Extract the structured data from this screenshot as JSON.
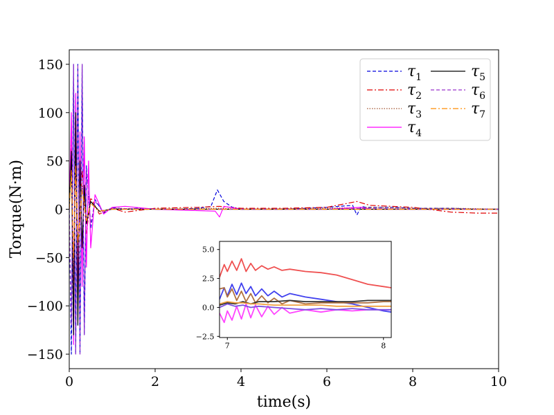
{
  "chart_data": [
    {
      "type": "line",
      "title": "",
      "xlabel": "time(s)",
      "ylabel": "Torque(N·m)",
      "xlim": [
        0,
        10
      ],
      "ylim": [
        -165,
        165
      ],
      "xticks": [
        0,
        2,
        4,
        6,
        8,
        10
      ],
      "xtick_labels": [
        "0",
        "2",
        "4",
        "6",
        "8",
        "10"
      ],
      "yticks": [
        -150,
        -100,
        -50,
        0,
        50,
        100,
        150
      ],
      "ytick_labels": [
        "−150",
        "−100",
        "−50",
        "0",
        "50",
        "100",
        "150"
      ],
      "grid": false,
      "legend_position": "top-right",
      "series": [
        {
          "name": "τ1",
          "color": "#0000dd",
          "style": "dashed",
          "x": [
            0,
            0.05,
            0.1,
            0.15,
            0.2,
            0.25,
            0.3,
            0.35,
            0.4,
            0.5,
            0.6,
            0.8,
            1.0,
            1.3,
            1.6,
            2.0,
            2.5,
            3.0,
            3.3,
            3.45,
            3.5,
            3.6,
            3.8,
            4.0,
            5.0,
            6.0,
            6.6,
            6.7,
            6.8,
            6.9,
            7.5,
            8.0,
            8.9,
            9.5,
            10
          ],
          "values": [
            0,
            -150,
            150,
            -150,
            150,
            -150,
            150,
            -130,
            45,
            -20,
            10,
            -4,
            2,
            0,
            1,
            0,
            0,
            1,
            3,
            20,
            16,
            8,
            2,
            0,
            0,
            2,
            4,
            -6,
            3,
            2,
            2,
            1,
            1,
            0,
            0
          ]
        },
        {
          "name": "τ2",
          "color": "#e00000",
          "style": "dashdot",
          "x": [
            0,
            0.05,
            0.1,
            0.15,
            0.2,
            0.3,
            0.4,
            0.5,
            0.7,
            1.0,
            1.3,
            2.0,
            3.0,
            3.5,
            4.0,
            5.0,
            6.0,
            6.7,
            7.0,
            7.5,
            8.0,
            8.9,
            9.5,
            10
          ],
          "values": [
            0,
            80,
            -100,
            110,
            -60,
            40,
            -25,
            12,
            -5,
            1,
            -3,
            1,
            2,
            3,
            1,
            1,
            2,
            8,
            4,
            3,
            2,
            -3,
            -4,
            -4
          ]
        },
        {
          "name": "τ3",
          "color": "#a0522d",
          "style": "dotted",
          "x": [
            0,
            0.05,
            0.1,
            0.15,
            0.2,
            0.3,
            0.4,
            0.5,
            0.7,
            1.0,
            2.0,
            3.5,
            4.0,
            6.0,
            7.0,
            8.0,
            9.0,
            10
          ],
          "values": [
            0,
            60,
            -70,
            50,
            -40,
            25,
            -15,
            8,
            -3,
            1,
            0,
            1,
            0,
            1,
            2,
            1,
            1,
            0
          ]
        },
        {
          "name": "τ4",
          "color": "#ff00ff",
          "style": "solid",
          "x": [
            0,
            0.05,
            0.1,
            0.15,
            0.2,
            0.25,
            0.3,
            0.35,
            0.4,
            0.45,
            0.5,
            0.6,
            0.8,
            1.0,
            1.3,
            2.0,
            3.4,
            3.5,
            3.6,
            4.0,
            6.0,
            6.8,
            7.0,
            8.0,
            9.0,
            10
          ],
          "values": [
            0,
            100,
            -140,
            120,
            -100,
            80,
            -80,
            75,
            -60,
            50,
            -40,
            15,
            -5,
            2,
            3,
            0,
            -2,
            -8,
            3,
            0,
            0,
            2,
            0,
            0,
            0,
            0
          ]
        },
        {
          "name": "τ5",
          "color": "#000000",
          "style": "solid",
          "x": [
            0,
            0.05,
            0.1,
            0.15,
            0.2,
            0.25,
            0.3,
            0.35,
            0.4,
            0.5,
            0.7,
            1.0,
            2.0,
            4.0,
            6.0,
            8.0,
            9.5,
            10
          ],
          "values": [
            0,
            60,
            -130,
            100,
            -120,
            50,
            -40,
            25,
            -15,
            8,
            -2,
            0,
            0,
            0,
            0,
            0,
            0,
            0
          ]
        },
        {
          "name": "τ6",
          "color": "#9932cc",
          "style": "dashed",
          "x": [
            0,
            0.05,
            0.1,
            0.15,
            0.2,
            0.25,
            0.3,
            0.35,
            0.4,
            0.5,
            0.6,
            0.8,
            1.0,
            2.0,
            4.0,
            6.0,
            7.0,
            8.0,
            9.0,
            10
          ],
          "values": [
            0,
            -120,
            150,
            -150,
            150,
            -150,
            150,
            -130,
            40,
            -15,
            8,
            -2,
            1,
            0,
            0,
            0,
            1,
            0,
            0,
            0
          ]
        },
        {
          "name": "τ7",
          "color": "#ff8c00",
          "style": "dashdot",
          "x": [
            0,
            0.05,
            0.1,
            0.15,
            0.2,
            0.3,
            0.4,
            0.5,
            0.7,
            1.0,
            2.0,
            4.0,
            6.0,
            8.0,
            10
          ],
          "values": [
            0,
            40,
            -50,
            45,
            -35,
            20,
            -12,
            6,
            -2,
            0,
            0,
            0,
            0,
            0,
            0
          ]
        }
      ]
    },
    {
      "type": "line",
      "title": "",
      "xlabel": "",
      "ylabel": "",
      "xlim": [
        6.95,
        8.05
      ],
      "ylim": [
        -2.6,
        5.7
      ],
      "xticks": [
        7,
        8
      ],
      "xtick_labels": [
        "7",
        "8"
      ],
      "yticks": [
        -2.5,
        0.0,
        2.5,
        5.0
      ],
      "ytick_labels": [
        "−2.5",
        "0.0",
        "2.5",
        "5.0"
      ],
      "grid": false,
      "series": [
        {
          "name": "τ2 (zoom)",
          "color": "#ef5050",
          "x": [
            6.95,
            6.98,
            7.0,
            7.03,
            7.06,
            7.09,
            7.12,
            7.15,
            7.18,
            7.22,
            7.26,
            7.3,
            7.35,
            7.4,
            7.5,
            7.6,
            7.7,
            7.8,
            7.9,
            8.0,
            8.05
          ],
          "values": [
            2.6,
            3.7,
            3.1,
            4.0,
            3.2,
            4.2,
            3.1,
            3.8,
            3.2,
            3.6,
            3.3,
            3.5,
            3.2,
            3.3,
            3.1,
            3.0,
            2.8,
            2.4,
            2.0,
            1.8,
            1.7
          ]
        },
        {
          "name": "τ1 (zoom)",
          "color": "#4040ee",
          "x": [
            6.95,
            6.98,
            7.0,
            7.03,
            7.06,
            7.09,
            7.12,
            7.15,
            7.18,
            7.22,
            7.26,
            7.3,
            7.35,
            7.4,
            7.5,
            7.6,
            7.7,
            7.8,
            7.9,
            8.0,
            8.05
          ],
          "values": [
            0.7,
            1.7,
            1.0,
            2.0,
            1.1,
            2.1,
            1.2,
            1.8,
            1.0,
            1.6,
            1.0,
            1.4,
            0.9,
            1.2,
            0.9,
            0.7,
            0.5,
            0.3,
            0.0,
            -0.3,
            -0.4
          ]
        },
        {
          "name": "τ4 (zoom)",
          "color": "#ff44ff",
          "x": [
            6.95,
            6.98,
            7.0,
            7.03,
            7.06,
            7.09,
            7.12,
            7.15,
            7.18,
            7.22,
            7.26,
            7.3,
            7.35,
            7.4,
            7.5,
            7.6,
            7.7,
            7.8,
            7.9,
            8.0,
            8.05
          ],
          "values": [
            -0.5,
            -1.3,
            -0.3,
            -1.1,
            0.1,
            -1.0,
            0.3,
            -0.9,
            0.2,
            -0.8,
            0.1,
            -0.6,
            0.0,
            -0.5,
            -0.2,
            -0.4,
            -0.2,
            -0.3,
            -0.2,
            -0.2,
            -0.2
          ]
        },
        {
          "name": "τ3 (zoom)",
          "color": "#b07040",
          "x": [
            6.95,
            6.98,
            7.0,
            7.03,
            7.06,
            7.09,
            7.12,
            7.15,
            7.18,
            7.22,
            7.26,
            7.3,
            7.35,
            7.4,
            7.5,
            7.6,
            7.7,
            7.8,
            7.9,
            8.0,
            8.05
          ],
          "values": [
            1.6,
            1.7,
            0.9,
            1.6,
            0.6,
            1.4,
            0.5,
            1.2,
            0.4,
            1.0,
            0.4,
            0.8,
            0.3,
            0.6,
            0.3,
            0.4,
            0.4,
            0.4,
            0.4,
            0.5,
            0.5
          ]
        },
        {
          "name": "τ5 (zoom)",
          "color": "#303030",
          "x": [
            6.95,
            7.0,
            7.05,
            7.1,
            7.15,
            7.2,
            7.3,
            7.4,
            7.5,
            7.6,
            7.7,
            7.8,
            7.9,
            8.0,
            8.05
          ],
          "values": [
            0.2,
            0.4,
            0.3,
            0.5,
            0.3,
            0.5,
            0.5,
            0.6,
            0.5,
            0.5,
            0.5,
            0.5,
            0.6,
            0.6,
            0.6
          ]
        },
        {
          "name": "τ6 (zoom)",
          "color": "#7a50e0",
          "x": [
            6.95,
            7.0,
            7.05,
            7.1,
            7.15,
            7.2,
            7.3,
            7.4,
            7.5,
            7.6,
            7.7,
            7.8,
            7.9,
            8.0,
            8.05
          ],
          "values": [
            0.0,
            0.3,
            0.1,
            0.2,
            0.0,
            0.1,
            0.0,
            -0.1,
            -0.2,
            -0.1,
            -0.2,
            -0.1,
            -0.2,
            -0.2,
            -0.2
          ]
        },
        {
          "name": "τ7 (zoom)",
          "color": "#f0a040",
          "x": [
            6.95,
            7.0,
            7.05,
            7.1,
            7.15,
            7.2,
            7.3,
            7.4,
            7.5,
            7.6,
            7.7,
            7.8,
            7.9,
            8.0,
            8.05
          ],
          "values": [
            0.3,
            0.5,
            0.4,
            0.4,
            0.3,
            0.3,
            0.2,
            0.2,
            0.2,
            0.2,
            0.1,
            0.1,
            0.1,
            0.1,
            0.1
          ]
        }
      ]
    }
  ],
  "legend": [
    {
      "symbol": "τ",
      "sub": "1",
      "color": "#0000dd",
      "style": "dashed"
    },
    {
      "symbol": "τ",
      "sub": "2",
      "color": "#e00000",
      "style": "dashdot"
    },
    {
      "symbol": "τ",
      "sub": "3",
      "color": "#a0522d",
      "style": "dotted"
    },
    {
      "symbol": "τ",
      "sub": "4",
      "color": "#ff00ff",
      "style": "solid"
    },
    {
      "symbol": "τ",
      "sub": "5",
      "color": "#000000",
      "style": "solid"
    },
    {
      "symbol": "τ",
      "sub": "6",
      "color": "#9932cc",
      "style": "dashed"
    },
    {
      "symbol": "τ",
      "sub": "7",
      "color": "#ff8c00",
      "style": "dashdot"
    }
  ]
}
